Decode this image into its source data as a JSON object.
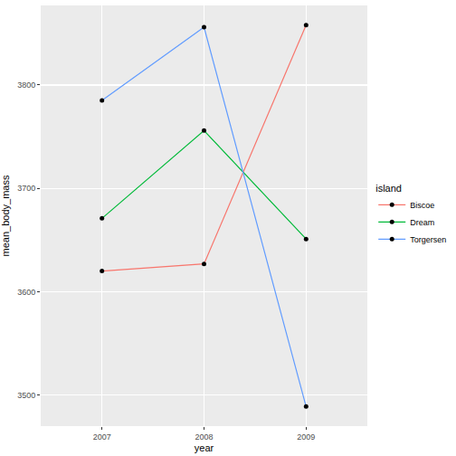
{
  "chart_data": {
    "type": "line",
    "x_label": "year",
    "y_label": "mean_body_mass",
    "legend_title": "island",
    "legend": "right",
    "grid": true,
    "marker": "circle",
    "x": [
      2007,
      2008,
      2009
    ],
    "series": [
      {
        "name": "Biscoe",
        "color": "#F8766D",
        "values": [
          3620,
          3627,
          3858
        ]
      },
      {
        "name": "Dream",
        "color": "#00BA38",
        "values": [
          3671,
          3756,
          3651
        ]
      },
      {
        "name": "Torgersen",
        "color": "#619CFF",
        "values": [
          3785,
          3856,
          3489
        ]
      }
    ],
    "xlim": [
      2006.4,
      2009.6
    ],
    "xticks": [
      2007,
      2008,
      2009
    ],
    "ylim": [
      3470,
      3877
    ],
    "yticks": [
      3500,
      3600,
      3700,
      3800
    ]
  }
}
